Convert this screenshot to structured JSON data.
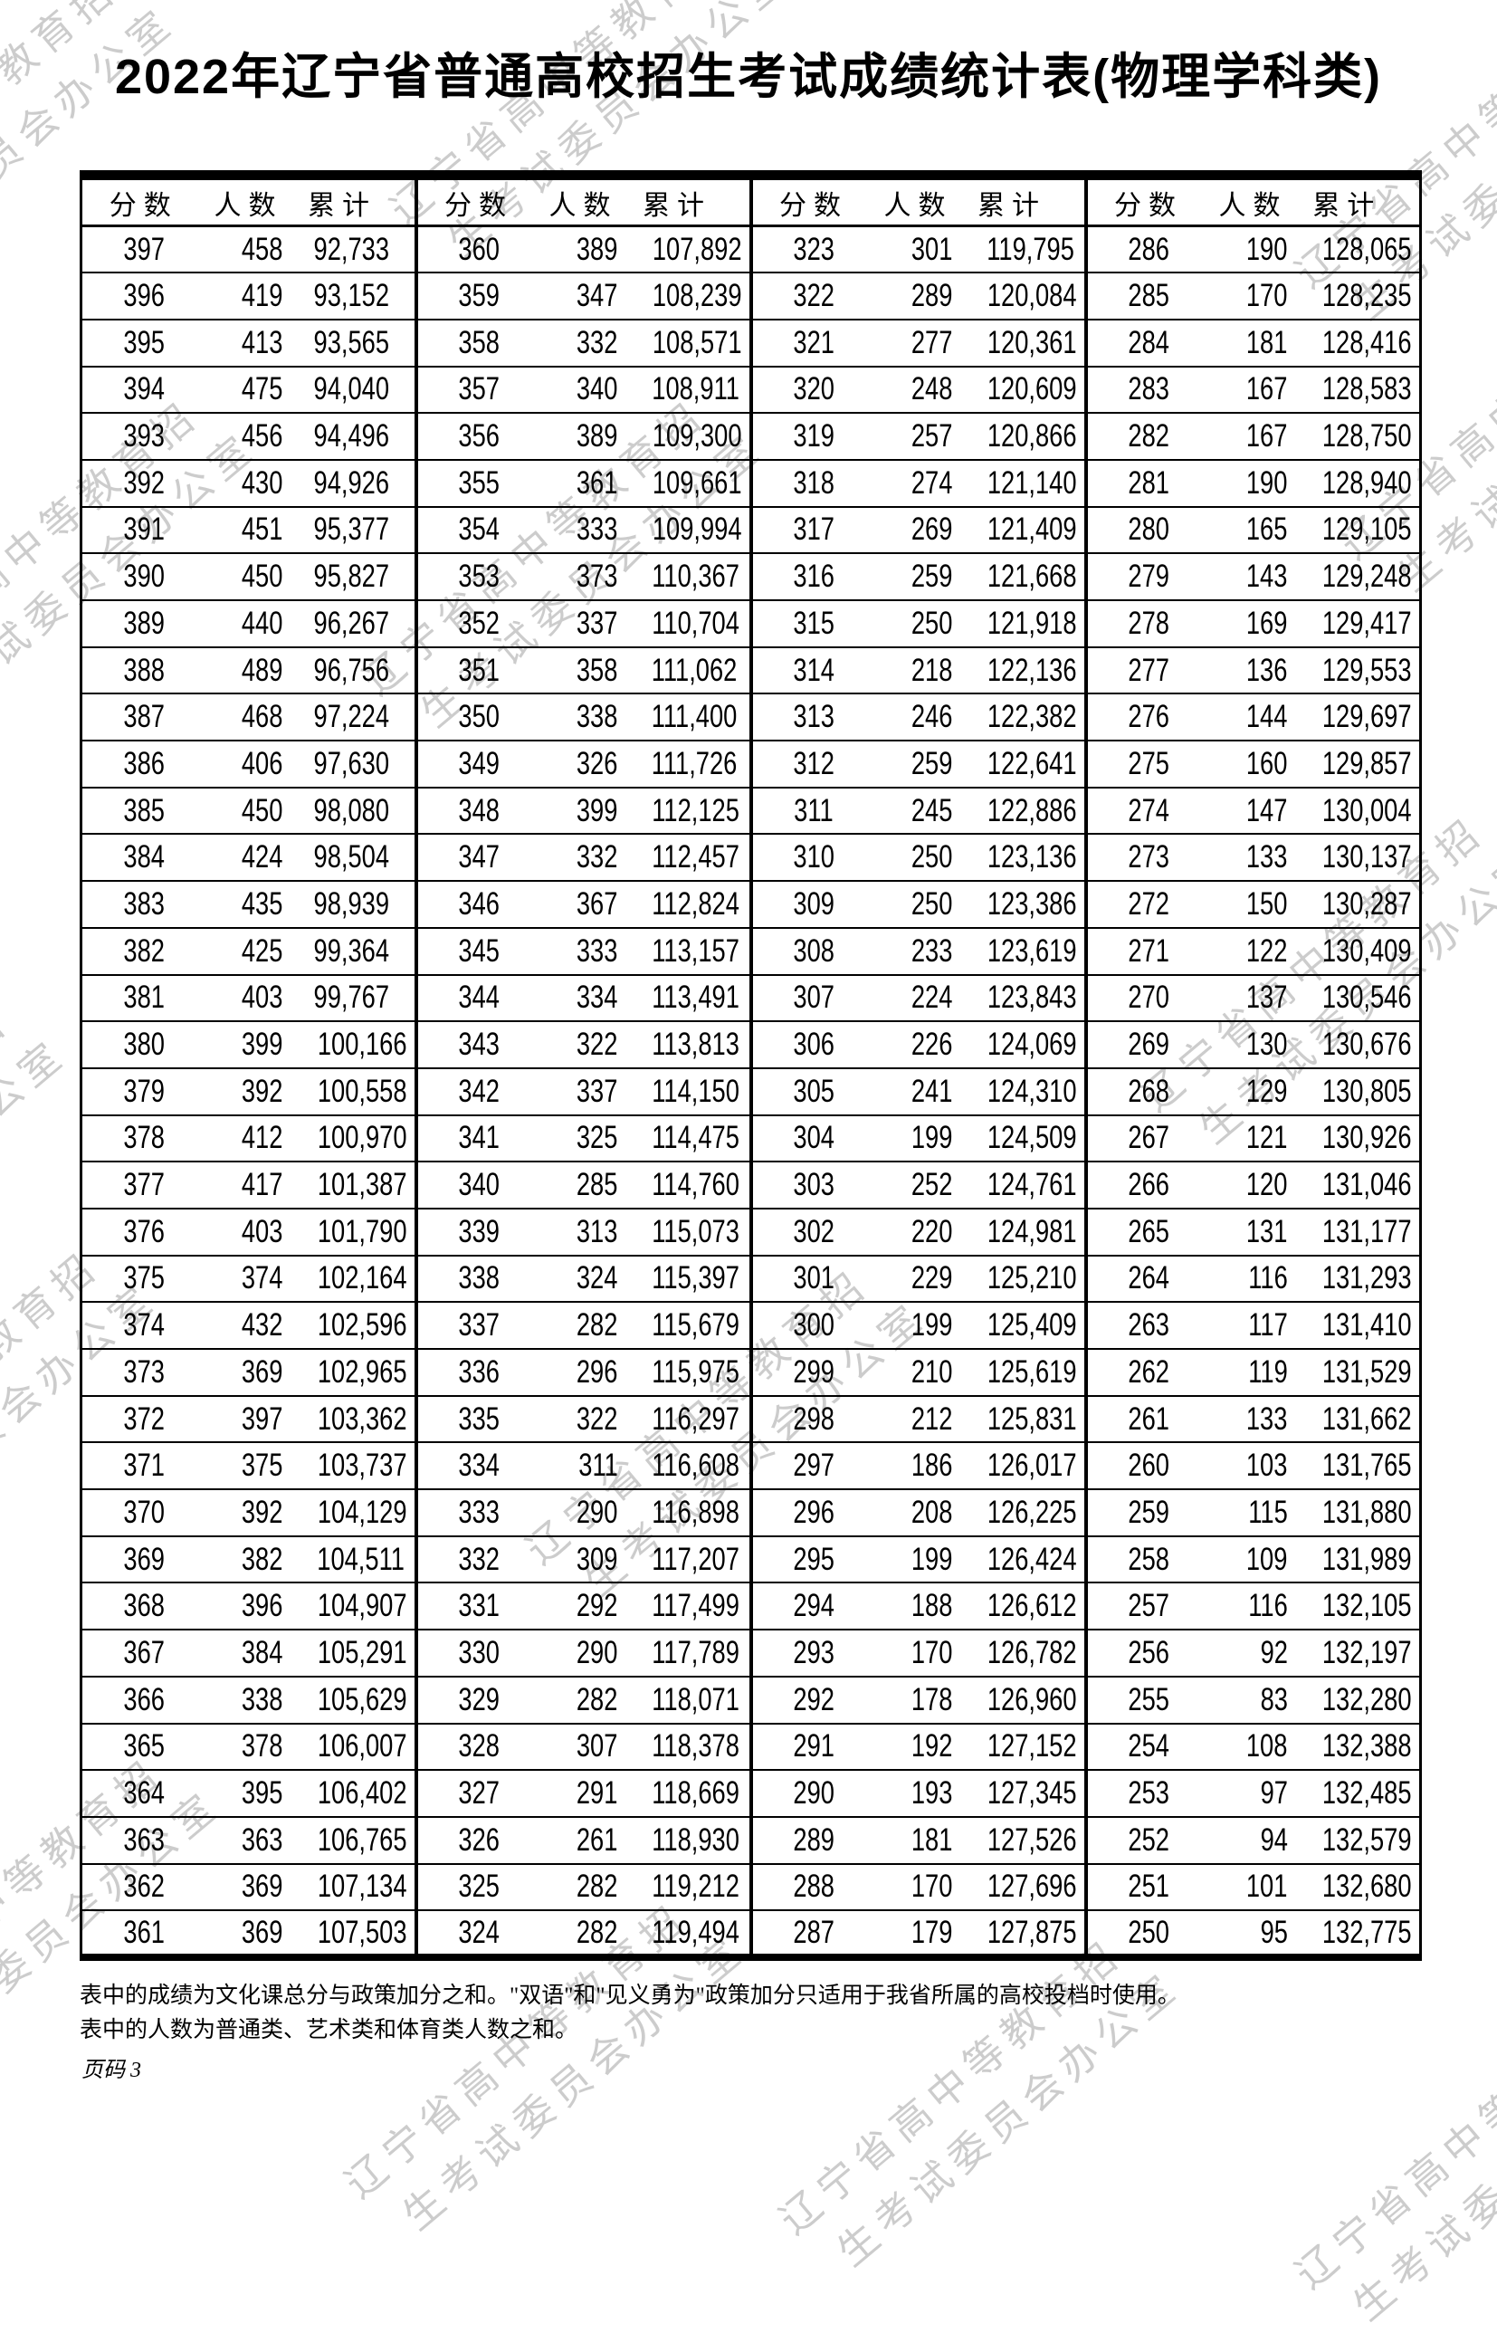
{
  "page": {
    "title": "2022年辽宁省普通高校招生考试成绩统计表(物理学科类)",
    "page_label": "页码 3"
  },
  "watermark": {
    "line1": "辽宁省高中等教育招",
    "line2": "生考试委员会办公室"
  },
  "table": {
    "column_headers": [
      "分数",
      "人数",
      "累计"
    ],
    "groups": [
      {
        "rows": [
          [
            "397",
            "458",
            "92,733"
          ],
          [
            "396",
            "419",
            "93,152"
          ],
          [
            "395",
            "413",
            "93,565"
          ],
          [
            "394",
            "475",
            "94,040"
          ],
          [
            "393",
            "456",
            "94,496"
          ],
          [
            "392",
            "430",
            "94,926"
          ],
          [
            "391",
            "451",
            "95,377"
          ],
          [
            "390",
            "450",
            "95,827"
          ],
          [
            "389",
            "440",
            "96,267"
          ],
          [
            "388",
            "489",
            "96,756"
          ],
          [
            "387",
            "468",
            "97,224"
          ],
          [
            "386",
            "406",
            "97,630"
          ],
          [
            "385",
            "450",
            "98,080"
          ],
          [
            "384",
            "424",
            "98,504"
          ],
          [
            "383",
            "435",
            "98,939"
          ],
          [
            "382",
            "425",
            "99,364"
          ],
          [
            "381",
            "403",
            "99,767"
          ],
          [
            "380",
            "399",
            "100,166"
          ],
          [
            "379",
            "392",
            "100,558"
          ],
          [
            "378",
            "412",
            "100,970"
          ],
          [
            "377",
            "417",
            "101,387"
          ],
          [
            "376",
            "403",
            "101,790"
          ],
          [
            "375",
            "374",
            "102,164"
          ],
          [
            "374",
            "432",
            "102,596"
          ],
          [
            "373",
            "369",
            "102,965"
          ],
          [
            "372",
            "397",
            "103,362"
          ],
          [
            "371",
            "375",
            "103,737"
          ],
          [
            "370",
            "392",
            "104,129"
          ],
          [
            "369",
            "382",
            "104,511"
          ],
          [
            "368",
            "396",
            "104,907"
          ],
          [
            "367",
            "384",
            "105,291"
          ],
          [
            "366",
            "338",
            "105,629"
          ],
          [
            "365",
            "378",
            "106,007"
          ],
          [
            "364",
            "395",
            "106,402"
          ],
          [
            "363",
            "363",
            "106,765"
          ],
          [
            "362",
            "369",
            "107,134"
          ],
          [
            "361",
            "369",
            "107,503"
          ]
        ]
      },
      {
        "rows": [
          [
            "360",
            "389",
            "107,892"
          ],
          [
            "359",
            "347",
            "108,239"
          ],
          [
            "358",
            "332",
            "108,571"
          ],
          [
            "357",
            "340",
            "108,911"
          ],
          [
            "356",
            "389",
            "109,300"
          ],
          [
            "355",
            "361",
            "109,661"
          ],
          [
            "354",
            "333",
            "109,994"
          ],
          [
            "353",
            "373",
            "110,367"
          ],
          [
            "352",
            "337",
            "110,704"
          ],
          [
            "351",
            "358",
            "111,062"
          ],
          [
            "350",
            "338",
            "111,400"
          ],
          [
            "349",
            "326",
            "111,726"
          ],
          [
            "348",
            "399",
            "112,125"
          ],
          [
            "347",
            "332",
            "112,457"
          ],
          [
            "346",
            "367",
            "112,824"
          ],
          [
            "345",
            "333",
            "113,157"
          ],
          [
            "344",
            "334",
            "113,491"
          ],
          [
            "343",
            "322",
            "113,813"
          ],
          [
            "342",
            "337",
            "114,150"
          ],
          [
            "341",
            "325",
            "114,475"
          ],
          [
            "340",
            "285",
            "114,760"
          ],
          [
            "339",
            "313",
            "115,073"
          ],
          [
            "338",
            "324",
            "115,397"
          ],
          [
            "337",
            "282",
            "115,679"
          ],
          [
            "336",
            "296",
            "115,975"
          ],
          [
            "335",
            "322",
            "116,297"
          ],
          [
            "334",
            "311",
            "116,608"
          ],
          [
            "333",
            "290",
            "116,898"
          ],
          [
            "332",
            "309",
            "117,207"
          ],
          [
            "331",
            "292",
            "117,499"
          ],
          [
            "330",
            "290",
            "117,789"
          ],
          [
            "329",
            "282",
            "118,071"
          ],
          [
            "328",
            "307",
            "118,378"
          ],
          [
            "327",
            "291",
            "118,669"
          ],
          [
            "326",
            "261",
            "118,930"
          ],
          [
            "325",
            "282",
            "119,212"
          ],
          [
            "324",
            "282",
            "119,494"
          ]
        ]
      },
      {
        "rows": [
          [
            "323",
            "301",
            "119,795"
          ],
          [
            "322",
            "289",
            "120,084"
          ],
          [
            "321",
            "277",
            "120,361"
          ],
          [
            "320",
            "248",
            "120,609"
          ],
          [
            "319",
            "257",
            "120,866"
          ],
          [
            "318",
            "274",
            "121,140"
          ],
          [
            "317",
            "269",
            "121,409"
          ],
          [
            "316",
            "259",
            "121,668"
          ],
          [
            "315",
            "250",
            "121,918"
          ],
          [
            "314",
            "218",
            "122,136"
          ],
          [
            "313",
            "246",
            "122,382"
          ],
          [
            "312",
            "259",
            "122,641"
          ],
          [
            "311",
            "245",
            "122,886"
          ],
          [
            "310",
            "250",
            "123,136"
          ],
          [
            "309",
            "250",
            "123,386"
          ],
          [
            "308",
            "233",
            "123,619"
          ],
          [
            "307",
            "224",
            "123,843"
          ],
          [
            "306",
            "226",
            "124,069"
          ],
          [
            "305",
            "241",
            "124,310"
          ],
          [
            "304",
            "199",
            "124,509"
          ],
          [
            "303",
            "252",
            "124,761"
          ],
          [
            "302",
            "220",
            "124,981"
          ],
          [
            "301",
            "229",
            "125,210"
          ],
          [
            "300",
            "199",
            "125,409"
          ],
          [
            "299",
            "210",
            "125,619"
          ],
          [
            "298",
            "212",
            "125,831"
          ],
          [
            "297",
            "186",
            "126,017"
          ],
          [
            "296",
            "208",
            "126,225"
          ],
          [
            "295",
            "199",
            "126,424"
          ],
          [
            "294",
            "188",
            "126,612"
          ],
          [
            "293",
            "170",
            "126,782"
          ],
          [
            "292",
            "178",
            "126,960"
          ],
          [
            "291",
            "192",
            "127,152"
          ],
          [
            "290",
            "193",
            "127,345"
          ],
          [
            "289",
            "181",
            "127,526"
          ],
          [
            "288",
            "170",
            "127,696"
          ],
          [
            "287",
            "179",
            "127,875"
          ]
        ]
      },
      {
        "rows": [
          [
            "286",
            "190",
            "128,065"
          ],
          [
            "285",
            "170",
            "128,235"
          ],
          [
            "284",
            "181",
            "128,416"
          ],
          [
            "283",
            "167",
            "128,583"
          ],
          [
            "282",
            "167",
            "128,750"
          ],
          [
            "281",
            "190",
            "128,940"
          ],
          [
            "280",
            "165",
            "129,105"
          ],
          [
            "279",
            "143",
            "129,248"
          ],
          [
            "278",
            "169",
            "129,417"
          ],
          [
            "277",
            "136",
            "129,553"
          ],
          [
            "276",
            "144",
            "129,697"
          ],
          [
            "275",
            "160",
            "129,857"
          ],
          [
            "274",
            "147",
            "130,004"
          ],
          [
            "273",
            "133",
            "130,137"
          ],
          [
            "272",
            "150",
            "130,287"
          ],
          [
            "271",
            "122",
            "130,409"
          ],
          [
            "270",
            "137",
            "130,546"
          ],
          [
            "269",
            "130",
            "130,676"
          ],
          [
            "268",
            "129",
            "130,805"
          ],
          [
            "267",
            "121",
            "130,926"
          ],
          [
            "266",
            "120",
            "131,046"
          ],
          [
            "265",
            "131",
            "131,177"
          ],
          [
            "264",
            "116",
            "131,293"
          ],
          [
            "263",
            "117",
            "131,410"
          ],
          [
            "262",
            "119",
            "131,529"
          ],
          [
            "261",
            "133",
            "131,662"
          ],
          [
            "260",
            "103",
            "131,765"
          ],
          [
            "259",
            "115",
            "131,880"
          ],
          [
            "258",
            "109",
            "131,989"
          ],
          [
            "257",
            "116",
            "132,105"
          ],
          [
            "256",
            "92",
            "132,197"
          ],
          [
            "255",
            "83",
            "132,280"
          ],
          [
            "254",
            "108",
            "132,388"
          ],
          [
            "253",
            "97",
            "132,485"
          ],
          [
            "252",
            "94",
            "132,579"
          ],
          [
            "251",
            "101",
            "132,680"
          ],
          [
            "250",
            "95",
            "132,775"
          ]
        ]
      }
    ]
  },
  "footnotes": [
    "表中的成绩为文化课总分与政策加分之和。\"双语\"和\"见义勇为\"政策加分只适用于我省所属的高校投档时使用。",
    "表中的人数为普通类、艺术类和体育类人数之和。"
  ]
}
